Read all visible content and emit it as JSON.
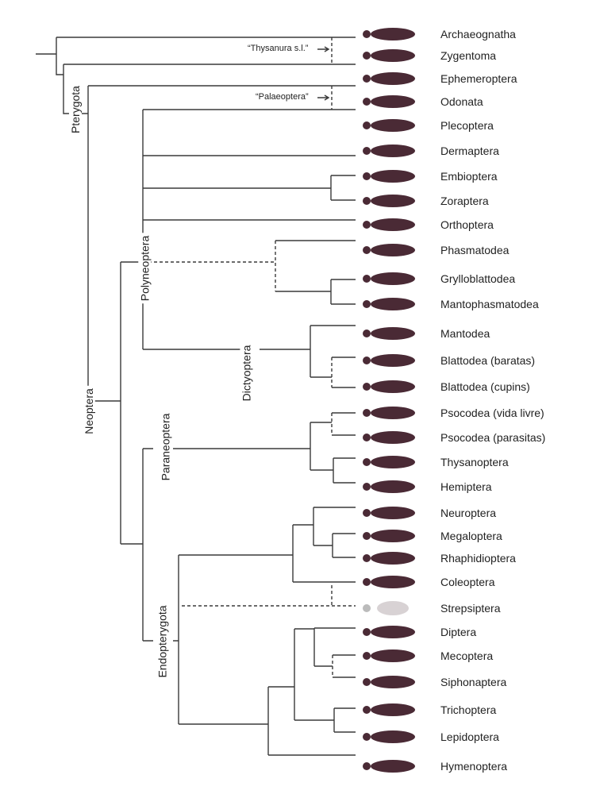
{
  "taxa": [
    "Archaeognatha",
    "Zygentoma",
    "Ephemeroptera",
    "Odonata",
    "Plecoptera",
    "Dermaptera",
    "Embioptera",
    "Zoraptera",
    "Orthoptera",
    "Phasmatodea",
    "Grylloblattodea",
    "Mantophasmatodea",
    "Mantodea",
    "Blattodea (baratas)",
    "Blattodea (cupins)",
    "Psocodea (vida livre)",
    "Psocodea (parasitas)",
    "Thysanoptera",
    "Hemiptera",
    "Neuroptera",
    "Megaloptera",
    "Rhaphidioptera",
    "Coleoptera",
    "Strepsiptera",
    "Diptera",
    "Mecoptera",
    "Siphonaptera",
    "Trichoptera",
    "Lepidoptera",
    "Hymenoptera"
  ],
  "clades": {
    "pterygota": "Pterygota",
    "neoptera": "Neoptera",
    "polyneoptera": "Polyneoptera",
    "dictyoptera": "Dictyoptera",
    "paraneoptera": "Paraneoptera",
    "endopterygota": "Endopterygota"
  },
  "notes": {
    "thysanura": "“Thysanura s.l.”",
    "palaeoptera": "“Palaeoptera”"
  },
  "colors": {
    "line": "#3a3a3a",
    "insect": "#4a2a35"
  }
}
